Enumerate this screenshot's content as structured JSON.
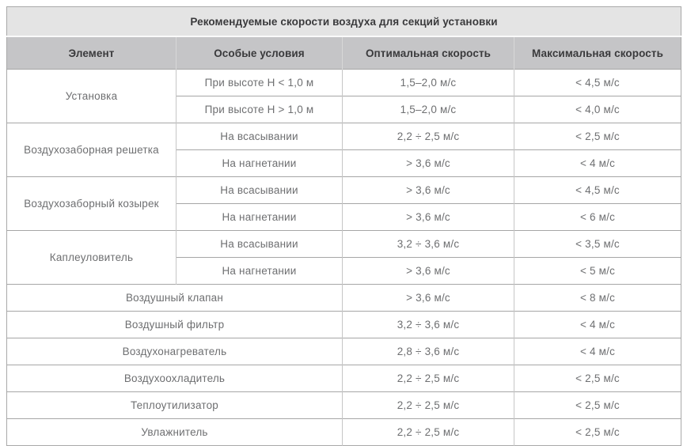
{
  "table": {
    "title": "Рекомендуемые скорости воздуха для секций установки",
    "columns": [
      "Элемент",
      "Особые условия",
      "Оптимальная скорость",
      "Максимальная скорость"
    ],
    "groups": [
      {
        "element": "Установка",
        "rows": [
          {
            "condition": "При высоте Н < 1,0 м",
            "optimal": "1,5–2,0 м/с",
            "max": "< 4,5 м/с"
          },
          {
            "condition": "При высоте Н > 1,0 м",
            "optimal": "1,5–2,0 м/с",
            "max": "< 4,0 м/с"
          }
        ]
      },
      {
        "element": "Воздухозаборная решетка",
        "rows": [
          {
            "condition": "На всасывании",
            "optimal": "2,2 ÷ 2,5 м/с",
            "max": "< 2,5 м/с"
          },
          {
            "condition": "На нагнетании",
            "optimal": "> 3,6 м/с",
            "max": "< 4 м/с"
          }
        ]
      },
      {
        "element": "Воздухозаборный козырек",
        "rows": [
          {
            "condition": "На всасывании",
            "optimal": "> 3,6 м/с",
            "max": "< 4,5 м/с"
          },
          {
            "condition": "На нагнетании",
            "optimal": "> 3,6 м/с",
            "max": "< 6 м/с"
          }
        ]
      },
      {
        "element": "Каплеуловитель",
        "rows": [
          {
            "condition": "На всасывании",
            "optimal": "3,2 ÷ 3,6 м/с",
            "max": "< 3,5 м/с"
          },
          {
            "condition": "На нагнетании",
            "optimal": "> 3,6 м/с",
            "max": "< 5 м/с"
          }
        ]
      }
    ],
    "singles": [
      {
        "element": "Воздушный клапан",
        "optimal": "> 3,6 м/с",
        "max": "< 8 м/с"
      },
      {
        "element": "Воздушный фильтр",
        "optimal": "3,2 ÷ 3,6 м/с",
        "max": "< 4 м/с"
      },
      {
        "element": "Воздухонагреватель",
        "optimal": "2,8 ÷ 3,6 м/с",
        "max": "< 4 м/с"
      },
      {
        "element": "Воздухоохладитель",
        "optimal": "2,2 ÷ 2,5 м/с",
        "max": "< 2,5 м/с"
      },
      {
        "element": "Теплоутилизатор",
        "optimal": "2,2 ÷ 2,5 м/с",
        "max": "< 2,5 м/с"
      },
      {
        "element": "Увлажнитель",
        "optimal": "2,2 ÷ 2,5 м/с",
        "max": "< 2,5 м/с"
      }
    ]
  },
  "colors": {
    "title_bg": "#e4e4e4",
    "header_bg": "#c5c5c7",
    "row_bg": "#ffffff",
    "heading_text": "#3a3a3c",
    "cell_text": "#6e6f71",
    "outer_border": "#a9a9a9",
    "horizontal_border": "#a6a6a6",
    "vertical_border": "#c6c6c6"
  }
}
